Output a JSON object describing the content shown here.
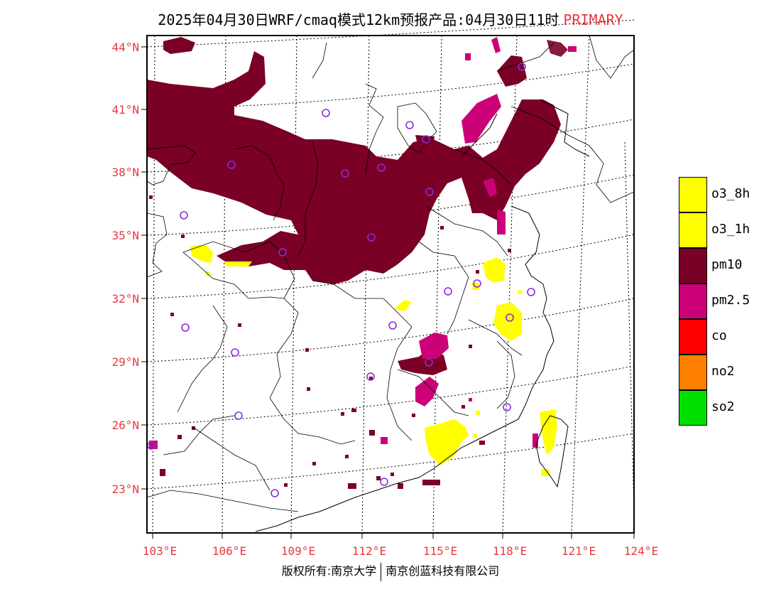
{
  "title": {
    "main": "2025年04月30日WRF/cmaq模式12km预报产品:04月30日11时",
    "tag": "PRIMARY"
  },
  "axes": {
    "lat_ticks": [
      "44°N",
      "41°N",
      "38°N",
      "35°N",
      "32°N",
      "29°N",
      "26°N",
      "23°N"
    ],
    "lon_ticks": [
      "103°E",
      "106°E",
      "109°E",
      "112°E",
      "115°E",
      "118°E",
      "121°E",
      "124°E"
    ]
  },
  "legend": [
    {
      "label": "o3_8h",
      "color": "#ffff00"
    },
    {
      "label": "o3_1h",
      "color": "#ffff00"
    },
    {
      "label": "pm10",
      "color": "#7a0026"
    },
    {
      "label": "pm2.5",
      "color": "#cc0077"
    },
    {
      "label": "co",
      "color": "#ff0000"
    },
    {
      "label": "no2",
      "color": "#ff8000"
    },
    {
      "label": "so2",
      "color": "#00e000"
    }
  ],
  "colors": {
    "pm10": "#7a0026",
    "pm25": "#cc0077",
    "o3": "#ffff00",
    "station": "#8a2be2",
    "label": "#e8383d"
  },
  "footer": {
    "left": "版权所有:南京大学",
    "right": "南京创蓝科技有限公司"
  }
}
